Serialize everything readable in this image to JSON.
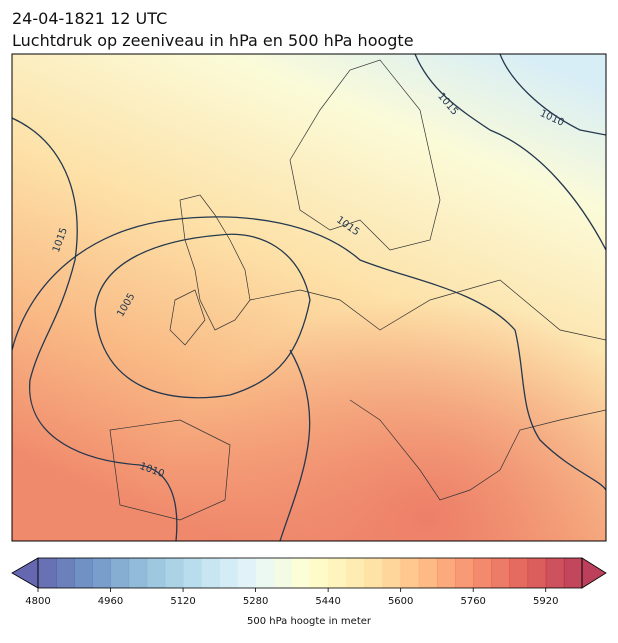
{
  "header": {
    "title": "24-04-1821 12 UTC",
    "subtitle": "Luchtdruk op zeeniveau in hPa en 500 hPa hoogte"
  },
  "map": {
    "contour_labels": [
      "1015",
      "1010",
      "1015",
      "1015",
      "1005",
      "1010"
    ]
  },
  "colorbar": {
    "label": "500 hPa hoogte in meter",
    "lim": [
      4800,
      6000
    ],
    "step": 40,
    "ticks": [
      4800,
      4960,
      5120,
      5280,
      5440,
      5600,
      5760,
      5920
    ],
    "colors": [
      "#313695",
      "#4575b4",
      "#74add1",
      "#abd9e9",
      "#e0f3f8",
      "#ffffbf",
      "#fee090",
      "#fdae61",
      "#f46d43",
      "#d73027",
      "#a50026"
    ]
  }
}
